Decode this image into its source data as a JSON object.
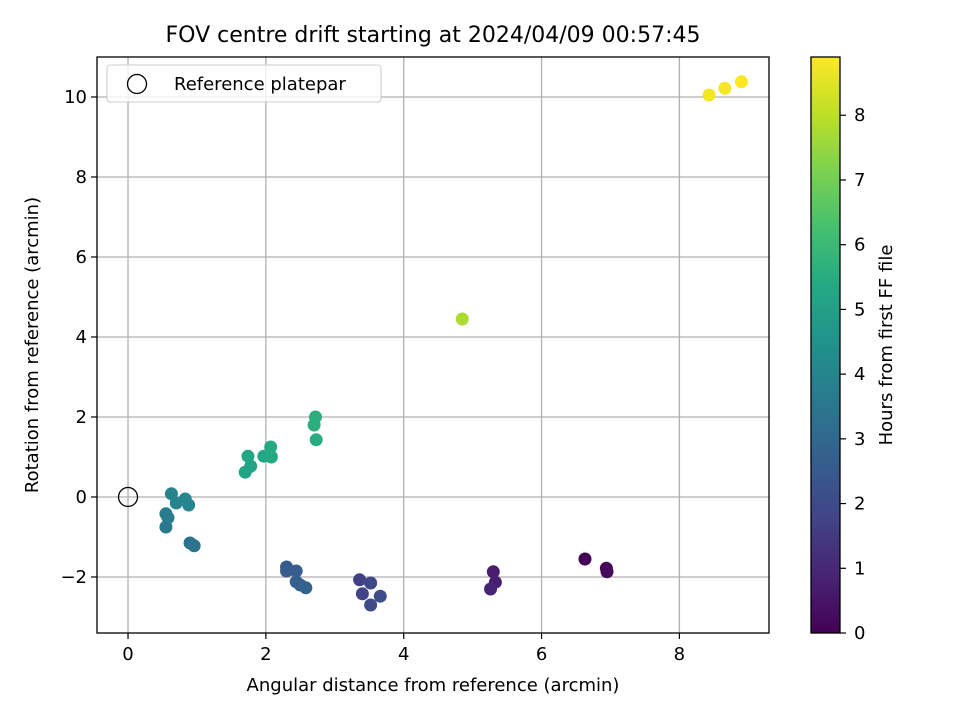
{
  "chart_data": {
    "type": "scatter",
    "title": "FOV centre drift starting at 2024/04/09 00:57:45",
    "xlabel": "Angular distance from reference (arcmin)",
    "ylabel": "Rotation from reference (arcmin)",
    "xlim": [
      -0.45,
      9.3
    ],
    "ylim": [
      -3.4,
      11.0
    ],
    "xticks": [
      0,
      2,
      4,
      6,
      8
    ],
    "yticks": [
      -2,
      0,
      2,
      4,
      6,
      8,
      10
    ],
    "xtick_labels": [
      "0",
      "2",
      "4",
      "6",
      "8"
    ],
    "ytick_labels": [
      "−2",
      "0",
      "2",
      "4",
      "6",
      "8",
      "10"
    ],
    "grid": true,
    "colormap": "viridis",
    "colorbar": {
      "label": "Hours from first FF file",
      "range": [
        0,
        8.9
      ],
      "ticks": [
        0,
        1,
        2,
        3,
        4,
        5,
        6,
        7,
        8
      ],
      "tick_labels": [
        "0",
        "1",
        "2",
        "3",
        "4",
        "5",
        "6",
        "7",
        "8"
      ]
    },
    "legend": {
      "position": "top-left",
      "entries": [
        "Reference platepar"
      ]
    },
    "reference": {
      "x": 0,
      "y": 0,
      "marker": "open-circle",
      "color": "#000000"
    },
    "points": [
      {
        "x": 6.63,
        "y": -1.55,
        "c": 0.0
      },
      {
        "x": 6.94,
        "y": -1.78,
        "c": 0.1
      },
      {
        "x": 6.95,
        "y": -1.87,
        "c": 0.2
      },
      {
        "x": 5.3,
        "y": -1.87,
        "c": 0.7
      },
      {
        "x": 5.33,
        "y": -2.13,
        "c": 0.8
      },
      {
        "x": 5.26,
        "y": -2.3,
        "c": 0.9
      },
      {
        "x": 3.36,
        "y": -2.07,
        "c": 1.7
      },
      {
        "x": 3.4,
        "y": -2.42,
        "c": 1.8
      },
      {
        "x": 3.52,
        "y": -2.15,
        "c": 1.9
      },
      {
        "x": 3.52,
        "y": -2.7,
        "c": 2.0
      },
      {
        "x": 3.66,
        "y": -2.48,
        "c": 2.1
      },
      {
        "x": 2.3,
        "y": -1.75,
        "c": 2.5
      },
      {
        "x": 2.3,
        "y": -1.85,
        "c": 2.6
      },
      {
        "x": 2.44,
        "y": -1.85,
        "c": 2.6
      },
      {
        "x": 2.44,
        "y": -2.12,
        "c": 2.7
      },
      {
        "x": 2.5,
        "y": -2.2,
        "c": 2.7
      },
      {
        "x": 2.58,
        "y": -2.27,
        "c": 2.8
      },
      {
        "x": 0.9,
        "y": -1.15,
        "c": 3.3
      },
      {
        "x": 0.96,
        "y": -1.22,
        "c": 3.4
      },
      {
        "x": 0.55,
        "y": -0.42,
        "c": 3.7
      },
      {
        "x": 0.58,
        "y": -0.52,
        "c": 3.7
      },
      {
        "x": 0.55,
        "y": -0.75,
        "c": 3.6
      },
      {
        "x": 0.63,
        "y": 0.08,
        "c": 4.0
      },
      {
        "x": 0.7,
        "y": -0.15,
        "c": 4.0
      },
      {
        "x": 0.83,
        "y": -0.05,
        "c": 4.1
      },
      {
        "x": 0.88,
        "y": -0.2,
        "c": 4.1
      },
      {
        "x": 1.7,
        "y": 0.62,
        "c": 5.2
      },
      {
        "x": 1.78,
        "y": 0.77,
        "c": 5.2
      },
      {
        "x": 1.74,
        "y": 1.02,
        "c": 5.3
      },
      {
        "x": 1.97,
        "y": 1.02,
        "c": 5.3
      },
      {
        "x": 2.08,
        "y": 1.0,
        "c": 5.4
      },
      {
        "x": 2.07,
        "y": 1.25,
        "c": 5.4
      },
      {
        "x": 2.7,
        "y": 1.8,
        "c": 5.6
      },
      {
        "x": 2.72,
        "y": 2.0,
        "c": 5.6
      },
      {
        "x": 2.73,
        "y": 1.43,
        "c": 5.5
      },
      {
        "x": 4.85,
        "y": 4.45,
        "c": 7.8
      },
      {
        "x": 8.43,
        "y": 10.05,
        "c": 8.75
      },
      {
        "x": 8.66,
        "y": 10.22,
        "c": 8.8
      },
      {
        "x": 8.9,
        "y": 10.38,
        "c": 8.9
      }
    ]
  }
}
